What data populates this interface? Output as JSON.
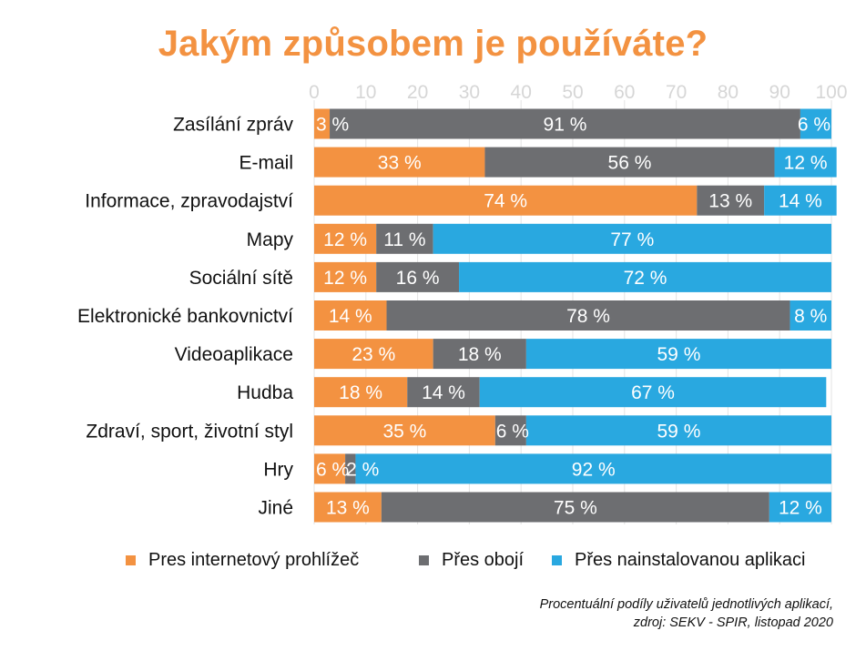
{
  "title": "Jakým způsobem je používáte?",
  "chart_data": {
    "type": "bar",
    "orientation": "horizontal",
    "stacked": true,
    "title": "Jakým způsobem je používáte?",
    "xlabel": "",
    "ylabel": "",
    "xlim": [
      0,
      100
    ],
    "x_ticks": [
      "0",
      "10",
      "20",
      "30",
      "40",
      "50",
      "60",
      "70",
      "80",
      "90",
      "100"
    ],
    "grid": true,
    "legend_position": "bottom",
    "categories": [
      "Zasílání zpráv",
      "E-mail",
      "Informace, zpravodajství",
      "Mapy",
      "Sociální sítě",
      "Elektronické bankovnictví",
      "Videoaplikace",
      "Hudba",
      "Zdraví, sport, životní styl",
      "Hry",
      "Jiné"
    ],
    "series": [
      {
        "name": "Pres internetový prohlížeč",
        "color": "#f39241",
        "values": [
          3,
          33,
          74,
          12,
          12,
          14,
          23,
          18,
          35,
          6,
          13
        ],
        "labels": [
          "3 %",
          "33 %",
          "74 %",
          "12 %",
          "12 %",
          "14 %",
          "23 %",
          "18 %",
          "35 %",
          "6 %",
          "13 %"
        ]
      },
      {
        "name": "Přes obojí",
        "color": "#6d6e71",
        "values": [
          91,
          56,
          13,
          11,
          16,
          78,
          18,
          14,
          6,
          2,
          75
        ],
        "labels": [
          "91 %",
          "56 %",
          "13 %",
          "11 %",
          "16 %",
          "78 %",
          "18 %",
          "14 %",
          "6 %",
          "2 %",
          "75 %"
        ]
      },
      {
        "name": "Přes nainstalovanou aplikaci",
        "color": "#29a8e0",
        "values": [
          6,
          12,
          14,
          77,
          72,
          8,
          59,
          67,
          59,
          92,
          12
        ],
        "labels": [
          "6 %",
          "12 %",
          "14 %",
          "77 %",
          "72 %",
          "8 %",
          "59 %",
          "67 %",
          "59 %",
          "92 %",
          "12 %"
        ]
      }
    ]
  },
  "legend": [
    {
      "label": "Pres internetový prohlížeč",
      "color": "#f39241"
    },
    {
      "label": "Přes obojí",
      "color": "#6d6e71"
    },
    {
      "label": "Přes nainstalovanou aplikaci",
      "color": "#29a8e0"
    }
  ],
  "source": {
    "line1": "Procentuální podíly uživatelů jednotlivých aplikací,",
    "line2": "zdroj: SEKV - SPIR, listopad 2020"
  }
}
